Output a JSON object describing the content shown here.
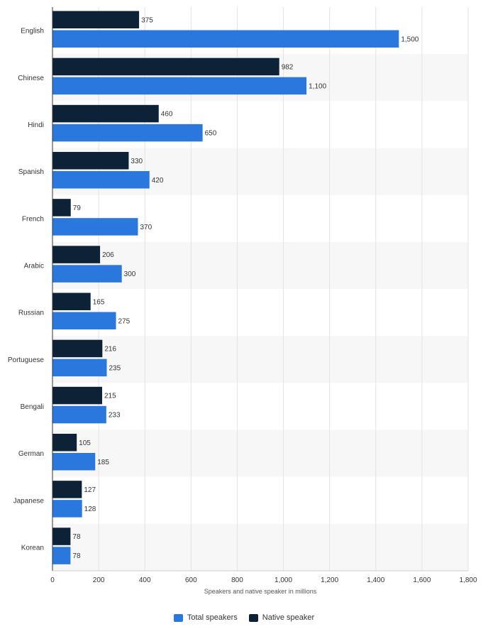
{
  "chart_data": {
    "type": "bar",
    "orientation": "horizontal",
    "categories": [
      "English",
      "Chinese",
      "Hindi",
      "Spanish",
      "French",
      "Arabic",
      "Russian",
      "Portuguese",
      "Bengali",
      "German",
      "Japanese",
      "Korean"
    ],
    "series": [
      {
        "name": "Native speaker",
        "color": "#0d2137",
        "values": [
          375,
          982,
          460,
          330,
          79,
          206,
          165,
          216,
          215,
          105,
          127,
          78
        ]
      },
      {
        "name": "Total speakers",
        "color": "#2a78de",
        "values": [
          1500,
          1100,
          650,
          420,
          370,
          300,
          275,
          235,
          233,
          185,
          128,
          78
        ]
      }
    ],
    "value_labels": {
      "Native speaker": [
        "375",
        "982",
        "460",
        "330",
        "79",
        "206",
        "165",
        "216",
        "215",
        "105",
        "127",
        "78"
      ],
      "Total speakers": [
        "1,500",
        "1,100",
        "650",
        "420",
        "370",
        "300",
        "275",
        "235",
        "233",
        "185",
        "128",
        "78"
      ]
    },
    "xlabel": "Speakers and native speaker in millions",
    "ylabel": "",
    "xlim": [
      0,
      1800
    ],
    "xticks": [
      0,
      200,
      400,
      600,
      800,
      1000,
      1200,
      1400,
      1600,
      1800
    ],
    "xtick_labels": [
      "0",
      "200",
      "400",
      "600",
      "800",
      "1,000",
      "1,200",
      "1,400",
      "1,600",
      "1,800"
    ],
    "grid": true,
    "alternating_row_shading": true,
    "legend_position": "bottom-center",
    "legend_order": [
      "Total speakers",
      "Native speaker"
    ]
  }
}
